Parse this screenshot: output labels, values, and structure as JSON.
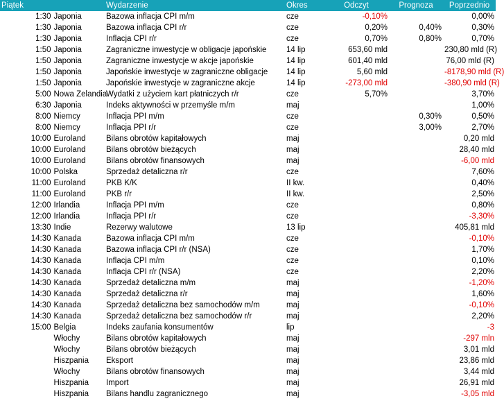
{
  "header": {
    "day": "Piątek",
    "event": "Wydarzenie",
    "period": "Okres",
    "actual": "Odczyt",
    "forecast": "Prognoza",
    "previous": "Poprzednio"
  },
  "colors": {
    "header_bg": "#17a2b8",
    "header_text": "#ffffff",
    "negative": "#e00000"
  },
  "rows": [
    {
      "time": "1:30",
      "country": "Japonia",
      "event": "Bazowa inflacja CPI m/m",
      "period": "cze",
      "actual": "-0,10%",
      "forecast": "",
      "previous": "0,00%"
    },
    {
      "time": "1:30",
      "country": "Japonia",
      "event": "Bazowa inflacja CPI r/r",
      "period": "cze",
      "actual": "0,20%",
      "forecast": "0,40%",
      "previous": "0,30%"
    },
    {
      "time": "1:30",
      "country": "Japonia",
      "event": "Inflacja CPI r/r",
      "period": "cze",
      "actual": "0,70%",
      "forecast": "0,80%",
      "previous": "0,70%"
    },
    {
      "time": "1:50",
      "country": "Japonia",
      "event": "Zagraniczne inwestycje w obligacje japońskie",
      "period": "14 lip",
      "actual": "653,60 mld",
      "forecast": "",
      "previous": "230,80 mld (R)"
    },
    {
      "time": "1:50",
      "country": "Japonia",
      "event": "Zagraniczne inwestycje w akcje japońskie",
      "period": "14 lip",
      "actual": "601,40 mld",
      "forecast": "",
      "previous": "76,00 mld (R)"
    },
    {
      "time": "1:50",
      "country": "Japonia",
      "event": "Japońskie inwestycje w zagraniczne obligacje",
      "period": "14 lip",
      "actual": "5,60 mld",
      "forecast": "",
      "previous": "-8178,90 mld (R)"
    },
    {
      "time": "1:50",
      "country": "Japonia",
      "event": "Japońskie inwestycje w zagraniczne akcje",
      "period": "14 lip",
      "actual": "-273,00 mld",
      "forecast": "",
      "previous": "-380,90 mld (R)"
    },
    {
      "time": "5:00",
      "country": "Nowa Zelandia",
      "event": "Wydatki z użyciem kart płatniczych r/r",
      "period": "cze",
      "actual": "5,70%",
      "forecast": "",
      "previous": "3,70%"
    },
    {
      "time": "6:30",
      "country": "Japonia",
      "event": "Indeks aktywności w przemyśle m/m",
      "period": "maj",
      "actual": "",
      "forecast": "",
      "previous": "1,00%"
    },
    {
      "time": "8:00",
      "country": "Niemcy",
      "event": "Inflacja PPI m/m",
      "period": "cze",
      "actual": "",
      "forecast": "0,30%",
      "previous": "0,50%"
    },
    {
      "time": "8:00",
      "country": "Niemcy",
      "event": "Inflacja PPI r/r",
      "period": "cze",
      "actual": "",
      "forecast": "3,00%",
      "previous": "2,70%"
    },
    {
      "time": "10:00",
      "country": "Euroland",
      "event": "Bilans obrotów kapitałowych",
      "period": "maj",
      "actual": "",
      "forecast": "",
      "previous": "0,20 mld"
    },
    {
      "time": "10:00",
      "country": "Euroland",
      "event": "Bilans obrotów bieżących",
      "period": "maj",
      "actual": "",
      "forecast": "",
      "previous": "28,40 mld"
    },
    {
      "time": "10:00",
      "country": "Euroland",
      "event": "Bilans obrotów finansowych",
      "period": "maj",
      "actual": "",
      "forecast": "",
      "previous": "-6,00 mld"
    },
    {
      "time": "10:00",
      "country": "Polska",
      "event": "Sprzedaż detaliczna r/r",
      "period": "cze",
      "actual": "",
      "forecast": "",
      "previous": "7,60%"
    },
    {
      "time": "11:00",
      "country": "Euroland",
      "event": "PKB K/K",
      "period": "II kw.",
      "actual": "",
      "forecast": "",
      "previous": "0,40%"
    },
    {
      "time": "11:00",
      "country": "Euroland",
      "event": "PKB r/r",
      "period": "II kw.",
      "actual": "",
      "forecast": "",
      "previous": "2,50%"
    },
    {
      "time": "12:00",
      "country": "Irlandia",
      "event": "Inflacja PPI m/m",
      "period": "cze",
      "actual": "",
      "forecast": "",
      "previous": "0,80%"
    },
    {
      "time": "12:00",
      "country": "Irlandia",
      "event": "Inflacja PPI r/r",
      "period": "cze",
      "actual": "",
      "forecast": "",
      "previous": "-3,30%"
    },
    {
      "time": "13:30",
      "country": "Indie",
      "event": "Rezerwy walutowe",
      "period": "13 lip",
      "actual": "",
      "forecast": "",
      "previous": "405,81 mld"
    },
    {
      "time": "14:30",
      "country": "Kanada",
      "event": "Bazowa inflacja CPI m/m",
      "period": "cze",
      "actual": "",
      "forecast": "",
      "previous": "-0,10%"
    },
    {
      "time": "14:30",
      "country": "Kanada",
      "event": "Bazowa inflacja CPI r/r (NSA)",
      "period": "cze",
      "actual": "",
      "forecast": "",
      "previous": "1,70%"
    },
    {
      "time": "14:30",
      "country": "Kanada",
      "event": "Inflacja CPI m/m",
      "period": "cze",
      "actual": "",
      "forecast": "",
      "previous": "0,10%"
    },
    {
      "time": "14:30",
      "country": "Kanada",
      "event": "Inflacja CPI r/r (NSA)",
      "period": "cze",
      "actual": "",
      "forecast": "",
      "previous": "2,20%"
    },
    {
      "time": "14:30",
      "country": "Kanada",
      "event": "Sprzedaż detaliczna m/m",
      "period": "maj",
      "actual": "",
      "forecast": "",
      "previous": "-1,20%"
    },
    {
      "time": "14:30",
      "country": "Kanada",
      "event": "Sprzedaż detaliczna r/r",
      "period": "maj",
      "actual": "",
      "forecast": "",
      "previous": "1,60%"
    },
    {
      "time": "14:30",
      "country": "Kanada",
      "event": "Sprzedaż detaliczna bez samochodów m/m",
      "period": "maj",
      "actual": "",
      "forecast": "",
      "previous": "-0,10%"
    },
    {
      "time": "14:30",
      "country": "Kanada",
      "event": "Sprzedaż detaliczna bez samochodów r/r",
      "period": "maj",
      "actual": "",
      "forecast": "",
      "previous": "2,20%"
    },
    {
      "time": "15:00",
      "country": "Belgia",
      "event": "Indeks zaufania konsumentów",
      "period": "lip",
      "actual": "",
      "forecast": "",
      "previous": "-3"
    },
    {
      "time": "",
      "country": "Włochy",
      "event": "Bilans obrotów kapitałowych",
      "period": "maj",
      "actual": "",
      "forecast": "",
      "previous": "-297 mln"
    },
    {
      "time": "",
      "country": "Włochy",
      "event": "Bilans obrotów bieżących",
      "period": "maj",
      "actual": "",
      "forecast": "",
      "previous": "3,01 mld"
    },
    {
      "time": "",
      "country": "Hiszpania",
      "event": "Eksport",
      "period": "maj",
      "actual": "",
      "forecast": "",
      "previous": "23,86 mld"
    },
    {
      "time": "",
      "country": "Włochy",
      "event": "Bilans obrotów finansowych",
      "period": "maj",
      "actual": "",
      "forecast": "",
      "previous": "3,44 mld"
    },
    {
      "time": "",
      "country": "Hiszpania",
      "event": "Import",
      "period": "maj",
      "actual": "",
      "forecast": "",
      "previous": "26,91 mld"
    },
    {
      "time": "",
      "country": "Hiszpania",
      "event": "Bilans handlu zagranicznego",
      "period": "maj",
      "actual": "",
      "forecast": "",
      "previous": "-3,05 mld"
    }
  ]
}
